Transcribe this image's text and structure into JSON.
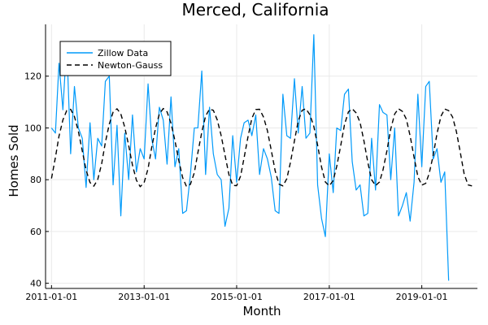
{
  "chart_data": {
    "type": "line",
    "title": "Merced, California",
    "xlabel": "Month",
    "ylabel": "Homes Sold",
    "x_ticks": [
      "2011-01-01",
      "2013-01-01",
      "2015-01-01",
      "2017-01-01",
      "2019-01-01"
    ],
    "y_ticks": [
      40,
      60,
      80,
      100,
      120
    ],
    "xlim": [
      "2010-11-15",
      "2020-03-15"
    ],
    "ylim": [
      38,
      140
    ],
    "grid": true,
    "legend_position": "top-left",
    "x_start": "2011-01-01",
    "series": [
      {
        "name": "Zillow Data",
        "color": "#009AFA",
        "style": "solid",
        "values": [
          100,
          98,
          125,
          107,
          133,
          90,
          116,
          100,
          96,
          77,
          102,
          80,
          96,
          93,
          118,
          120,
          78,
          101,
          66,
          98,
          80,
          105,
          83,
          92,
          88,
          117,
          96,
          88,
          108,
          103,
          86,
          112,
          85,
          92,
          67,
          68,
          82,
          100,
          100,
          122,
          82,
          108,
          90,
          82,
          80,
          62,
          69,
          97,
          79,
          96,
          102,
          103,
          97,
          105,
          82,
          92,
          88,
          81,
          68,
          67,
          113,
          97,
          96,
          119,
          98,
          116,
          96,
          98,
          136,
          78,
          65,
          58,
          90,
          75,
          100,
          99,
          113,
          115,
          87,
          76,
          78,
          66,
          67,
          96,
          76,
          109,
          106,
          105,
          80,
          100,
          66,
          70,
          75,
          64,
          79,
          113,
          85,
          116,
          118,
          88,
          92,
          79,
          83,
          41
        ]
      },
      {
        "name": "Newton-Gauss",
        "color": "#000000",
        "style": "dashed",
        "values": [
          80.5,
          88.6,
          96.8,
          103.1,
          106.7,
          107.2,
          104.4,
          98.7,
          91.1,
          83.7,
          78.9,
          77.5,
          80.1,
          86.2,
          94.4,
          101.5,
          106.1,
          107.4,
          105.4,
          100.3,
          93.2,
          85.6,
          79.8,
          77.3,
          78.9,
          84.3,
          92.3,
          99.9,
          105.4,
          107.5,
          106.2,
          101.8,
          95.1,
          87.5,
          80.8,
          77.4,
          78.2,
          82.7,
          90.4,
          98.4,
          104.6,
          107.3,
          106.8,
          103.1,
          97.0,
          89.5,
          82.0,
          77.8,
          77.7,
          81.4,
          88.5,
          96.7,
          103.7,
          107.1,
          107.2,
          104.2,
          98.9,
          91.4,
          83.4,
          78.3,
          77.6,
          80.4,
          86.8,
          95.0,
          102.7,
          106.8,
          107.4,
          105.1,
          100.6,
          93.3,
          84.9,
          79.1,
          77.6,
          79.7,
          85.2,
          93.1,
          101.3,
          106.2,
          107.4,
          105.8,
          102.1,
          95.1,
          86.7,
          80.0,
          77.7,
          79.1,
          83.8,
          91.2,
          99.6,
          105.4,
          107.4,
          106.4,
          103.4,
          96.9,
          88.7,
          81.2,
          77.9,
          78.6,
          82.5,
          89.4,
          97.8,
          104.5,
          107.3,
          106.7,
          104.2,
          98.6,
          90.5,
          82.3,
          78.0,
          77.6
        ]
      }
    ]
  }
}
